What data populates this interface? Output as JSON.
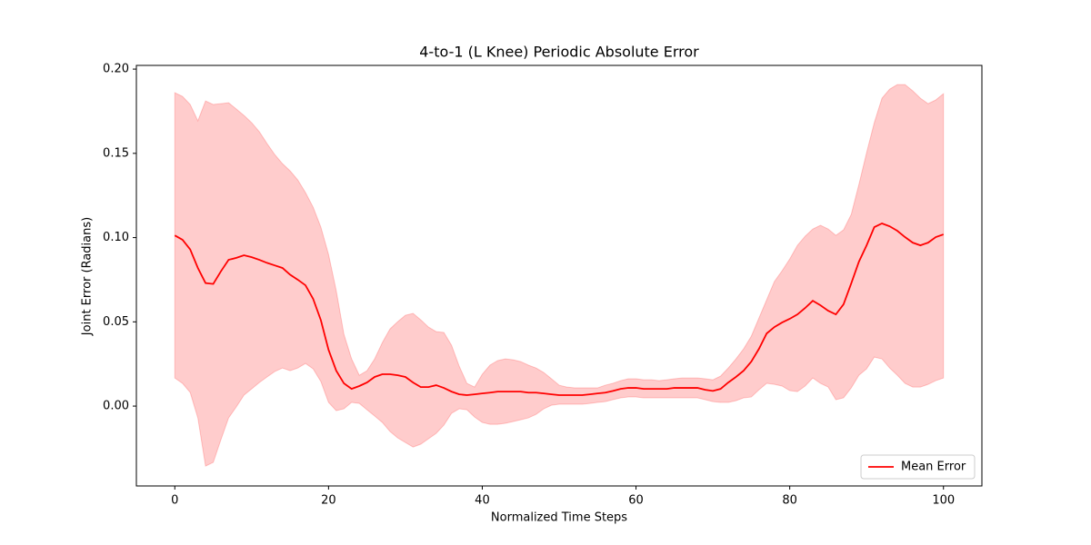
{
  "chart_data": {
    "type": "line",
    "title": "4-to-1 (L Knee) Periodic Absolute Error",
    "xlabel": "Normalized Time Steps",
    "ylabel": "Joint Error (Radians)",
    "x": [
      0,
      1,
      2,
      3,
      4,
      5,
      6,
      7,
      8,
      9,
      10,
      11,
      12,
      13,
      14,
      15,
      16,
      17,
      18,
      19,
      20,
      21,
      22,
      23,
      24,
      25,
      26,
      27,
      28,
      29,
      30,
      31,
      32,
      33,
      34,
      35,
      36,
      37,
      38,
      39,
      40,
      41,
      42,
      43,
      44,
      45,
      46,
      47,
      48,
      49,
      50,
      51,
      52,
      53,
      54,
      55,
      56,
      57,
      58,
      59,
      60,
      61,
      62,
      63,
      64,
      65,
      66,
      67,
      68,
      69,
      70,
      71,
      72,
      73,
      74,
      75,
      76,
      77,
      78,
      79,
      80,
      81,
      82,
      83,
      84,
      85,
      86,
      87,
      88,
      89,
      90,
      91,
      92,
      93,
      94,
      95,
      96,
      97,
      98,
      99,
      100
    ],
    "series": [
      {
        "name": "Mean Error",
        "color": "#ff0000",
        "values": [
          0.1013,
          0.0987,
          0.093,
          0.082,
          0.073,
          0.0725,
          0.08,
          0.0868,
          0.088,
          0.0895,
          0.0884,
          0.0868,
          0.085,
          0.0835,
          0.082,
          0.078,
          0.075,
          0.0717,
          0.0636,
          0.051,
          0.0334,
          0.021,
          0.0135,
          0.0102,
          0.0119,
          0.014,
          0.0173,
          0.0189,
          0.0189,
          0.0183,
          0.0173,
          0.014,
          0.0113,
          0.0113,
          0.0124,
          0.0108,
          0.0086,
          0.007,
          0.0065,
          0.007,
          0.0075,
          0.008,
          0.0086,
          0.0086,
          0.0086,
          0.0086,
          0.008,
          0.008,
          0.0075,
          0.007,
          0.0065,
          0.0065,
          0.0065,
          0.0065,
          0.007,
          0.0075,
          0.008,
          0.009,
          0.0102,
          0.0108,
          0.0108,
          0.0102,
          0.0102,
          0.0102,
          0.0102,
          0.0108,
          0.0108,
          0.0108,
          0.0108,
          0.0097,
          0.009,
          0.0102,
          0.014,
          0.0173,
          0.021,
          0.0264,
          0.034,
          0.0431,
          0.0469,
          0.0496,
          0.0518,
          0.0544,
          0.0582,
          0.0625,
          0.0598,
          0.0566,
          0.0544,
          0.0604,
          0.0728,
          0.0857,
          0.0954,
          0.1062,
          0.1084,
          0.1067,
          0.104,
          0.1003,
          0.097,
          0.0954,
          0.097,
          0.1003,
          0.1019
        ]
      }
    ],
    "band": {
      "color": "#ff0000",
      "upper": [
        0.186,
        0.1838,
        0.179,
        0.1693,
        0.1811,
        0.179,
        0.1795,
        0.18,
        0.1763,
        0.1725,
        0.1682,
        0.1628,
        0.1558,
        0.1493,
        0.1439,
        0.1396,
        0.1342,
        0.1267,
        0.118,
        0.1062,
        0.09,
        0.0685,
        0.0426,
        0.028,
        0.0183,
        0.021,
        0.028,
        0.0377,
        0.0458,
        0.0501,
        0.0539,
        0.055,
        0.0512,
        0.0469,
        0.0442,
        0.0437,
        0.0361,
        0.0237,
        0.0135,
        0.0113,
        0.0189,
        0.0243,
        0.027,
        0.028,
        0.0275,
        0.0264,
        0.0243,
        0.0226,
        0.0199,
        0.0162,
        0.0124,
        0.0113,
        0.0108,
        0.0108,
        0.0108,
        0.0108,
        0.0124,
        0.0135,
        0.0151,
        0.0162,
        0.0162,
        0.0156,
        0.0156,
        0.0151,
        0.0156,
        0.0162,
        0.0167,
        0.0167,
        0.0167,
        0.0162,
        0.0156,
        0.0178,
        0.0226,
        0.028,
        0.034,
        0.0415,
        0.0523,
        0.0631,
        0.0739,
        0.0803,
        0.0873,
        0.0954,
        0.1008,
        0.1051,
        0.1073,
        0.1051,
        0.1013,
        0.1046,
        0.1137,
        0.1315,
        0.1504,
        0.1682,
        0.1827,
        0.1881,
        0.1908,
        0.1908,
        0.1871,
        0.1827,
        0.1795,
        0.1817,
        0.1854
      ],
      "lower": [
        0.0167,
        0.0135,
        0.0081,
        -0.007,
        -0.0356,
        -0.0334,
        -0.0199,
        -0.007,
        -0.0005,
        0.0065,
        0.0102,
        0.014,
        0.0173,
        0.0205,
        0.0226,
        0.021,
        0.0226,
        0.0253,
        0.0221,
        0.0146,
        0.0022,
        -0.0027,
        -0.0016,
        0.0022,
        0.0016,
        -0.0022,
        -0.0059,
        -0.0097,
        -0.0151,
        -0.0189,
        -0.0216,
        -0.0243,
        -0.0226,
        -0.0194,
        -0.0162,
        -0.0113,
        -0.0043,
        -0.0016,
        -0.0022,
        -0.0065,
        -0.0097,
        -0.0108,
        -0.0108,
        -0.0102,
        -0.0092,
        -0.0081,
        -0.007,
        -0.0049,
        -0.0016,
        0.0005,
        0.0011,
        0.0011,
        0.0011,
        0.0011,
        0.0016,
        0.0022,
        0.0027,
        0.0038,
        0.0049,
        0.0054,
        0.0054,
        0.0049,
        0.0049,
        0.0049,
        0.0049,
        0.0049,
        0.0049,
        0.0049,
        0.0049,
        0.0038,
        0.0027,
        0.0022,
        0.0022,
        0.0032,
        0.0049,
        0.0054,
        0.0097,
        0.0135,
        0.0129,
        0.0119,
        0.0092,
        0.0086,
        0.0119,
        0.0167,
        0.0135,
        0.0113,
        0.0038,
        0.0049,
        0.0108,
        0.0183,
        0.0221,
        0.0291,
        0.028,
        0.0226,
        0.0183,
        0.0135,
        0.0113,
        0.0113,
        0.0129,
        0.0151,
        0.0167
      ]
    },
    "xlim": [
      -5,
      105
    ],
    "xticks": [
      0,
      20,
      40,
      60,
      80,
      100
    ],
    "ylim": [
      -0.0474,
      0.2022
    ],
    "yticks": [
      {
        "value": 0,
        "label": "0.00"
      },
      {
        "value": 0.05,
        "label": "0.05"
      },
      {
        "value": 0.1,
        "label": "0.10"
      },
      {
        "value": 0.15,
        "label": "0.15"
      },
      {
        "value": 0.2,
        "label": "0.20"
      }
    ],
    "legend": "lower right",
    "grid": false
  }
}
